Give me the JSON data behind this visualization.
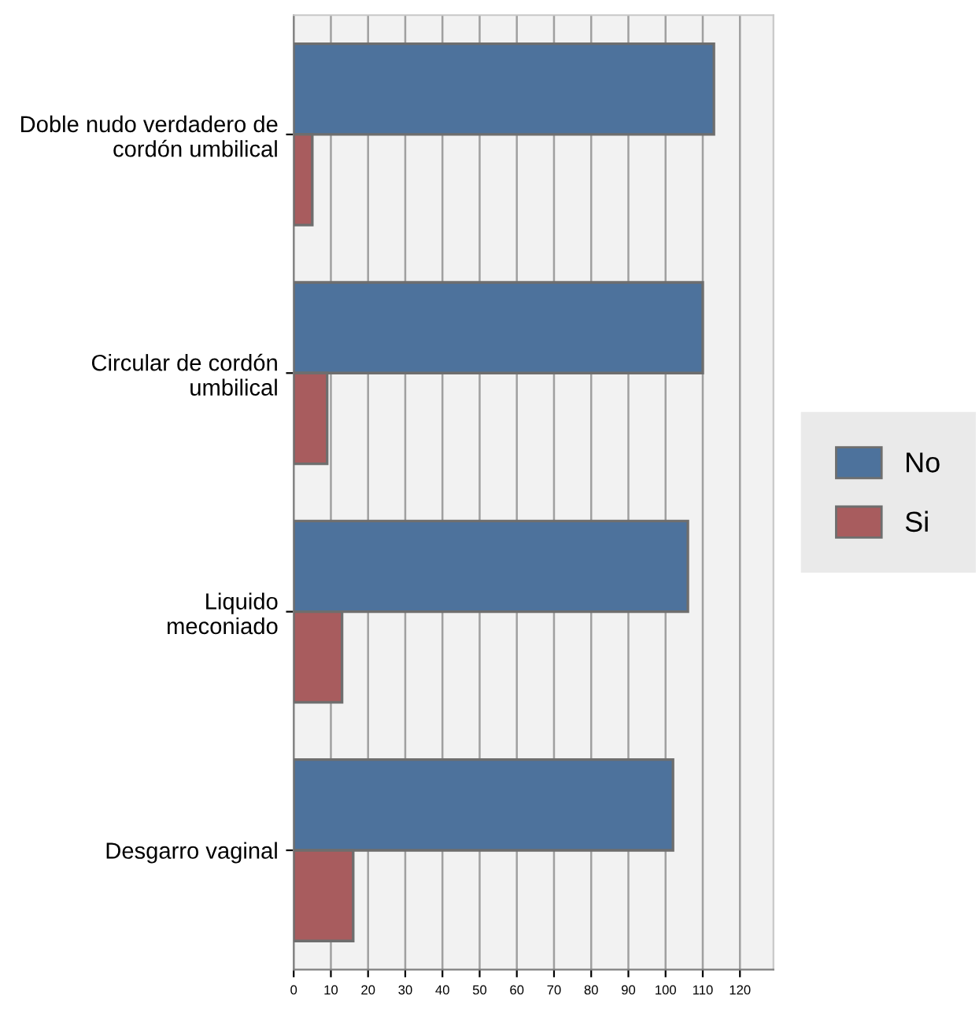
{
  "chart_data": {
    "type": "bar",
    "orientation": "horizontal",
    "categories": [
      "Doble nudo verdadero de\ncordón umbilical",
      "Circular de cordón\numbilical",
      "Liquido\nmeconiado",
      "Desgarro vaginal"
    ],
    "series": [
      {
        "name": "No",
        "color": "#4d729c",
        "values": [
          113,
          110,
          106,
          102
        ]
      },
      {
        "name": "Si",
        "color": "#a85c5e",
        "values": [
          5,
          9,
          13,
          16
        ]
      }
    ],
    "xlim": [
      0,
      129
    ],
    "xticks": [
      0,
      10,
      20,
      30,
      40,
      50,
      60,
      70,
      80,
      90,
      100,
      110,
      120
    ],
    "grid": "x",
    "legend": "right"
  }
}
